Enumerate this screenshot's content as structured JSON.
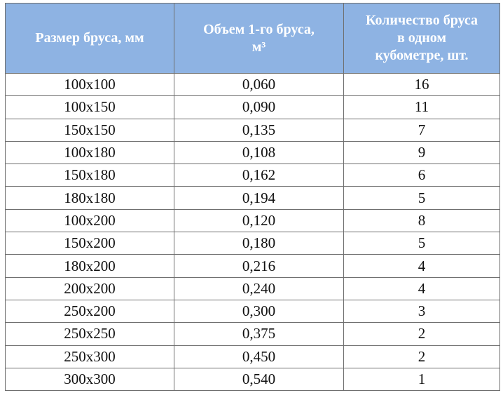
{
  "table": {
    "headers": [
      {
        "lines": [
          "Размер бруса, мм"
        ]
      },
      {
        "lines": [
          "Объем 1-го бруса,",
          "м³"
        ]
      },
      {
        "lines": [
          "Количество бруса",
          "в одном",
          "кубометре, шт."
        ]
      }
    ],
    "rows": [
      [
        "100х100",
        "0,060",
        "16"
      ],
      [
        "100х150",
        "0,090",
        "11"
      ],
      [
        "150х150",
        "0,135",
        "7"
      ],
      [
        "100х180",
        "0,108",
        "9"
      ],
      [
        "150х180",
        "0,162",
        "6"
      ],
      [
        "180х180",
        "0,194",
        "5"
      ],
      [
        "100х200",
        "0,120",
        "8"
      ],
      [
        "150х200",
        "0,180",
        "5"
      ],
      [
        "180х200",
        "0,216",
        "4"
      ],
      [
        "200х200",
        "0,240",
        "4"
      ],
      [
        "250х200",
        "0,300",
        "3"
      ],
      [
        "250х250",
        "0,375",
        "2"
      ],
      [
        "250х300",
        "0,450",
        "2"
      ],
      [
        "300х300",
        "0,540",
        "1"
      ]
    ]
  },
  "colors": {
    "header_bg": "#8eb3e3",
    "header_text": "#ffffff",
    "border": "#6f6f6f"
  }
}
